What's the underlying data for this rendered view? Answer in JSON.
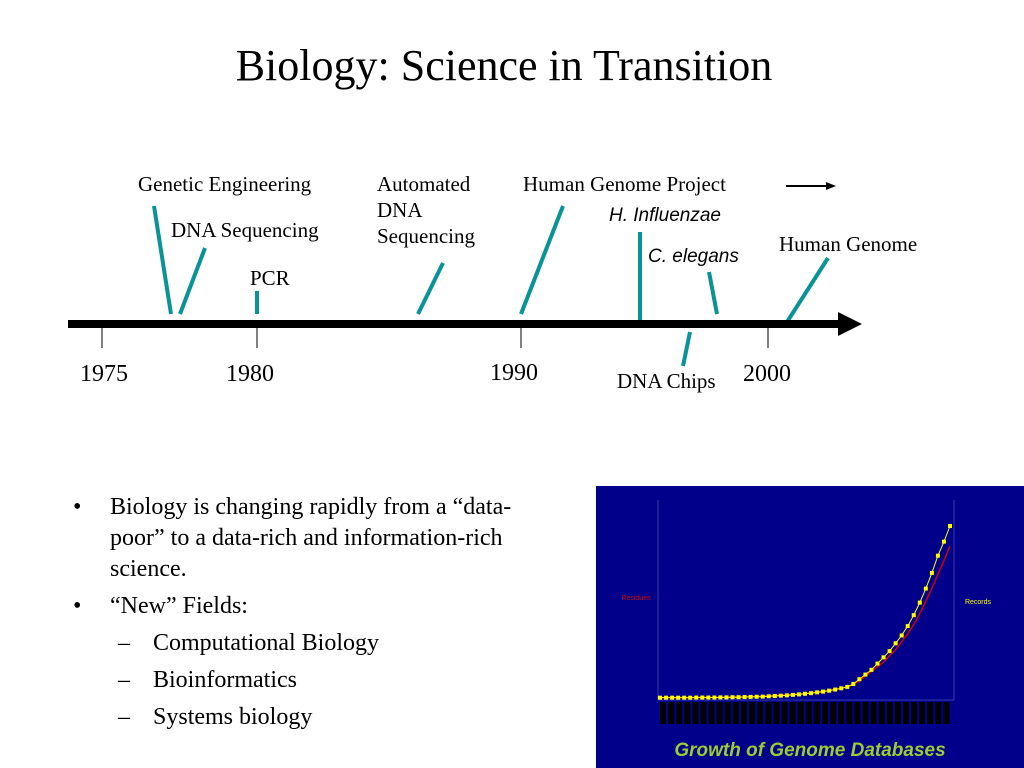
{
  "title": "Biology: Science in Transition",
  "timeline": {
    "labels": {
      "genetic_engineering": "Genetic Engineering",
      "dna_sequencing": "DNA Sequencing",
      "pcr": "PCR",
      "automated_dna_sequencing": [
        "Automated",
        "DNA",
        "Sequencing"
      ],
      "human_genome_project": "Human Genome Project",
      "h_influenzae": "H. Influenzae",
      "c_elegans": "C. elegans",
      "human_genome": "Human Genome",
      "dna_chips": "DNA Chips"
    },
    "years": [
      "1975",
      "1980",
      "1990",
      "2000"
    ]
  },
  "bullets": [
    {
      "level": 1,
      "marker": "•",
      "text": "Biology is changing rapidly from a “data-poor” to a data-rich and information-rich science."
    },
    {
      "level": 1,
      "marker": "•",
      "text": "“New” Fields:"
    },
    {
      "level": 2,
      "marker": "–",
      "text": "Computational Biology"
    },
    {
      "level": 2,
      "marker": "–",
      "text": "Bioinformatics"
    },
    {
      "level": 2,
      "marker": "–",
      "text": "Systems biology"
    }
  ],
  "chart": {
    "caption": "Growth of Genome Databases",
    "left_label": "Residues",
    "right_label": "Records",
    "colors": {
      "background": "#00008b",
      "residues": "#cc0000",
      "records": "#ffff00",
      "caption": "#9acd32"
    }
  },
  "chart_data": {
    "type": "line",
    "title": "Growth of Genome Databases",
    "ylabel": "Residues",
    "y2label": "Records",
    "series": [
      {
        "name": "Residues",
        "values": [
          0.3,
          0.3,
          0.3,
          0.3,
          0.3,
          0.3,
          0.3,
          0.4,
          0.4,
          0.4,
          0.5,
          0.5,
          0.6,
          0.7,
          0.8,
          0.9,
          1.0,
          1.2,
          1.4,
          1.6,
          1.8,
          2.0,
          2.3,
          2.6,
          3.0,
          3.4,
          3.8,
          4.4,
          5.0,
          5.6,
          6.3,
          7.2,
          8.5,
          11,
          14,
          17,
          20,
          23,
          27,
          31,
          36,
          41,
          47,
          54,
          62,
          70,
          79,
          88,
          97
        ]
      },
      {
        "name": "Records",
        "values": [
          0.2,
          0.2,
          0.2,
          0.2,
          0.2,
          0.2,
          0.3,
          0.3,
          0.3,
          0.3,
          0.4,
          0.4,
          0.5,
          0.5,
          0.6,
          0.7,
          0.8,
          0.9,
          1.1,
          1.3,
          1.5,
          1.7,
          2.0,
          2.3,
          2.7,
          3.1,
          3.6,
          4.1,
          4.7,
          5.4,
          6.2,
          7.1,
          9,
          12,
          15,
          18,
          22,
          26,
          30,
          35,
          40,
          46,
          53,
          61,
          70,
          80,
          91,
          100,
          110
        ]
      }
    ]
  }
}
